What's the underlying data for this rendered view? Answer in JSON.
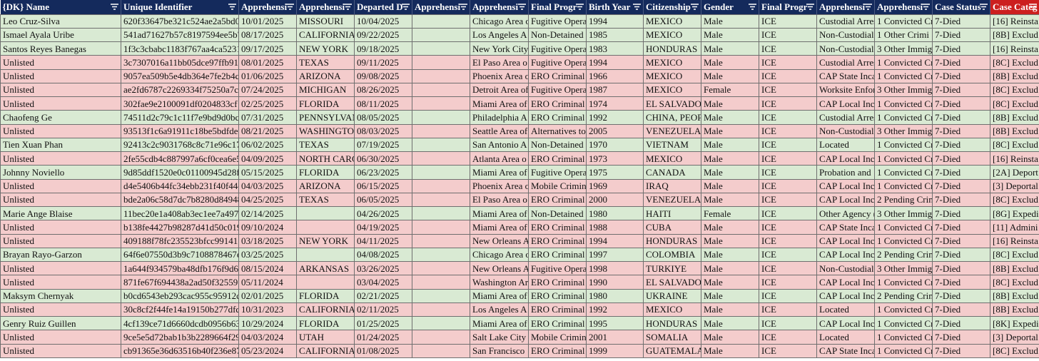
{
  "table": {
    "columns": [
      "{DK} Name",
      "Unique Identifier",
      "Apprehensi",
      "Apprehensi",
      "Departed D",
      "Apprehensi",
      "Apprehensi",
      "Final Progr",
      "Birth Year",
      "Citizenship",
      "Gender",
      "Final Progr",
      "Apprehensi",
      "Apprehensi",
      "Case Status",
      "Case Categ"
    ],
    "row_fills": [
      "#d9ead3",
      "#d9ead3",
      "#d9ead3",
      "#f4cccc",
      "#f4cccc",
      "#f4cccc",
      "#f4cccc",
      "#d9ead3",
      "#f4cccc",
      "#d9ead3",
      "#f4cccc",
      "#d9ead3",
      "#f4cccc",
      "#f4cccc",
      "#d9ead3",
      "#f4cccc",
      "#f4cccc",
      "#d9ead3",
      "#f4cccc",
      "#f4cccc",
      "#d9ead3",
      "#f4cccc",
      "#d9ead3",
      "#f4cccc",
      "#f4cccc"
    ],
    "rows": [
      [
        "Leo Cruz-Silva",
        "620f33647be321c524ae2a5bd0",
        "10/01/2025",
        "MISSOURI",
        "10/04/2025",
        null,
        "Chicago Area o",
        "Fugitive Opera",
        1994,
        "MEXICO",
        "Male",
        "ICE",
        "Custodial Arres",
        "1 Convicted Cr",
        "7-Died",
        "[16] Reinsta"
      ],
      [
        "Ismael Ayala Uribe",
        "541ad71627b57c8197594ee5b7",
        "08/17/2025",
        "CALIFORNIA",
        "09/22/2025",
        null,
        "Los Angeles A",
        "Non-Detained",
        1985,
        "MEXICO",
        "Male",
        "ICE",
        "Non-Custodial",
        "1 Other Crimi",
        "7-Died",
        "[8B] Exclud"
      ],
      [
        "Santos Reyes Banegas",
        "1f3c3cbabc1183f767aa4ca5231",
        "09/17/2025",
        "NEW YORK",
        "09/18/2025",
        null,
        "New York City",
        "Fugitive Opera",
        1983,
        "HONDURAS",
        "Male",
        "ICE",
        "Non-Custodial",
        "3 Other Immig",
        "7-Died",
        "[16] Reinsta"
      ],
      [
        "Unlisted",
        "3c7307016a11bb05dce97ffb91",
        "08/01/2025",
        "TEXAS",
        "09/11/2025",
        null,
        "El Paso Area o",
        "Fugitive Opera",
        1994,
        "MEXICO",
        "Male",
        "ICE",
        "Custodial Arres",
        "1 Convicted Cr",
        "7-Died",
        "[8C] Exclud"
      ],
      [
        "Unlisted",
        "9057ea509b5e4db364e7fe2b4c",
        "01/06/2025",
        "ARIZONA",
        "09/08/2025",
        null,
        "Phoenix Area o",
        "ERO Criminal",
        1966,
        "MEXICO",
        "Male",
        "ICE",
        "CAP State Inca",
        "1 Convicted Cr",
        "7-Died",
        "[8B] Exclud"
      ],
      [
        "Unlisted",
        "ae2fd6787c2269334f75250a7c",
        "07/24/2025",
        "MICHIGAN",
        "08/26/2025",
        null,
        "Detroit Area of",
        "Fugitive Opera",
        1987,
        "MEXICO",
        "Female",
        "ICE",
        "Worksite Enfor",
        "3 Other Immig",
        "7-Died",
        "[8C] Exclud"
      ],
      [
        "Unlisted",
        "302fae9e2100091df0204833cf",
        "02/25/2025",
        "FLORIDA",
        "08/11/2025",
        null,
        "Miami Area of",
        "ERO Criminal",
        1974,
        "EL SALVADO",
        "Male",
        "ICE",
        "CAP Local Inc",
        "1 Convicted Cr",
        "7-Died",
        "[8C] Exclud"
      ],
      [
        "Chaofeng Ge",
        "74511d2c79c1c11f7e9bd9d0bc",
        "07/31/2025",
        "PENNSYLVAN",
        "08/05/2025",
        null,
        "Philadelphia A",
        "ERO Criminal",
        1992,
        "CHINA, PEOP",
        "Male",
        "ICE",
        "Custodial Arres",
        "1 Convicted Cr",
        "7-Died",
        "[8B] Exclud"
      ],
      [
        "Unlisted",
        "93513f1c6a91911c18be5bdfdec",
        "08/21/2025",
        "WASHINGTO",
        "08/03/2025",
        null,
        "Seattle Area of",
        "Alternatives to",
        2005,
        "VENEZUELA",
        "Male",
        "ICE",
        "Non-Custodial",
        "3 Other Immig",
        "7-Died",
        "[8B] Exclud"
      ],
      [
        "Tien Xuan Phan",
        "92413c2c9031768c8c71e96c17",
        "06/02/2025",
        "TEXAS",
        "07/19/2025",
        null,
        "San Antonio A",
        "Non-Detained",
        1970,
        "VIETNAM",
        "Male",
        "ICE",
        "Located",
        "1 Convicted Cr",
        "7-Died",
        "[8C] Exclud"
      ],
      [
        "Unlisted",
        "2fe55cdb4c887997a6cf0cea6e5",
        "04/09/2025",
        "NORTH CARC",
        "06/30/2025",
        null,
        "Atlanta Area o",
        "ERO Criminal",
        1973,
        "MEXICO",
        "Male",
        "ICE",
        "CAP Local Inc",
        "1 Convicted Cr",
        "7-Died",
        "[16] Reinsta"
      ],
      [
        "Johnny Noviello",
        "9d85ddf1520e0c01100945d28f",
        "05/15/2025",
        "FLORIDA",
        "06/23/2025",
        null,
        "Miami Area of",
        "Fugitive Opera",
        1975,
        "CANADA",
        "Male",
        "ICE",
        "Probation and",
        "1 Convicted Cr",
        "7-Died",
        "[2A] Deport"
      ],
      [
        "Unlisted",
        "d4e5406b44fc34ebb231f40f44c",
        "04/03/2025",
        "ARIZONA",
        "06/15/2025",
        null,
        "Phoenix Area o",
        "Mobile Crimin",
        1969,
        "IRAQ",
        "Male",
        "ICE",
        "CAP Local Inc",
        "1 Convicted Cr",
        "7-Died",
        "[3] Deportal"
      ],
      [
        "Unlisted",
        "bde2a06c58d7dc7b8280d84948",
        "04/25/2025",
        "TEXAS",
        "06/05/2025",
        null,
        "El Paso Area o",
        "ERO Criminal",
        2000,
        "VENEZUELA",
        "Male",
        "ICE",
        "CAP Local Inc",
        "2 Pending Crim",
        "7-Died",
        "[8C] Exclud"
      ],
      [
        "Marie Ange Blaise",
        "11bec20e1a408ab3ec1ee7a4978",
        "02/14/2025",
        null,
        "04/26/2025",
        null,
        "Miami Area of",
        "Non-Detained",
        1980,
        "HAITI",
        "Female",
        "ICE",
        "Other Agency (",
        "3 Other Immig",
        "7-Died",
        "[8G] Expedi"
      ],
      [
        "Unlisted",
        "b138fe4427b98287d41d50c019",
        "09/10/2024",
        null,
        "04/19/2025",
        null,
        "Miami Area of",
        "ERO Criminal",
        1988,
        "CUBA",
        "Male",
        "ICE",
        "CAP State Inca",
        "1 Convicted Cr",
        "7-Died",
        "[11] Admini"
      ],
      [
        "Unlisted",
        "409188f78fc235523bfcc991411",
        "03/18/2025",
        "NEW YORK",
        "04/11/2025",
        null,
        "New Orleans A",
        "ERO Criminal",
        1994,
        "HONDURAS",
        "Male",
        "ICE",
        "CAP Local Inc",
        "1 Convicted Cr",
        "7-Died",
        "[16] Reinsta"
      ],
      [
        "Brayan Rayo-Garzon",
        "64f6e07550d3b9c7108878467e",
        "03/25/2025",
        null,
        "04/08/2025",
        null,
        "Chicago Area o",
        "ERO Criminal",
        1997,
        "COLOMBIA",
        "Male",
        "ICE",
        "CAP Local Inc",
        "2 Pending Crim",
        "7-Died",
        "[8C] Exclud"
      ],
      [
        "Unlisted",
        "1a644f934579ba48dfb176f9d6",
        "08/15/2024",
        "ARKANSAS",
        "03/26/2025",
        null,
        "New Orleans A",
        "Fugitive Opera",
        1998,
        "TURKIYE",
        "Male",
        "ICE",
        "Non-Custodial",
        "3 Other Immig",
        "7-Died",
        "[8B] Exclud"
      ],
      [
        "Unlisted",
        "871fe67f694438a2ad50f32559",
        "05/11/2024",
        null,
        "03/04/2025",
        null,
        "Washington Ar",
        "ERO Criminal",
        1990,
        "EL SALVADO",
        "Male",
        "ICE",
        "CAP Local Inc",
        "1 Convicted Cr",
        "7-Died",
        "[8C] Exclud"
      ],
      [
        "Maksym Chernyak",
        "b0cd6543eb293cac955c95912c",
        "02/01/2025",
        "FLORIDA",
        "02/21/2025",
        null,
        "Miami Area of",
        "ERO Criminal",
        1980,
        "UKRAINE",
        "Male",
        "ICE",
        "CAP Local Inc",
        "2 Pending Crim",
        "7-Died",
        "[8B] Exclud"
      ],
      [
        "Unlisted",
        "30c8cf2f44fe14a19150b277dfd",
        "10/31/2023",
        "CALIFORNIA",
        "02/11/2025",
        null,
        "Los Angeles A",
        "ERO Criminal",
        1992,
        "MEXICO",
        "Male",
        "ICE",
        "Located",
        "1 Convicted Cr",
        "7-Died",
        "[8B] Exclud"
      ],
      [
        "Genry Ruiz Guillen",
        "4cf139ce71d6660dcdb0956b63",
        "10/29/2024",
        "FLORIDA",
        "01/25/2025",
        null,
        "Miami Area of",
        "ERO Criminal",
        1995,
        "HONDURAS",
        "Male",
        "ICE",
        "CAP Local Inc",
        "1 Convicted Cr",
        "7-Died",
        "[8K] Expedi"
      ],
      [
        "Unlisted",
        "9ce5e5d72bab1b3b2289664f29",
        "04/03/2024",
        "UTAH",
        "01/24/2025",
        null,
        "Salt Lake City",
        "Mobile Crimin",
        2001,
        "SOMALIA",
        "Male",
        "ICE",
        "Located",
        "1 Convicted Cr",
        "7-Died",
        "[3] Deportal"
      ],
      [
        "Unlisted",
        "cb91365e36d63516b40f236e87",
        "05/23/2024",
        "CALIFORNIA",
        "01/08/2025",
        null,
        "San Francisco",
        "ERO Criminal",
        1999,
        "GUATEMALA",
        "Male",
        "ICE",
        "CAP State Inca",
        "1 Convicted Cr",
        "7-Died",
        "[8C] Exclud"
      ]
    ]
  }
}
